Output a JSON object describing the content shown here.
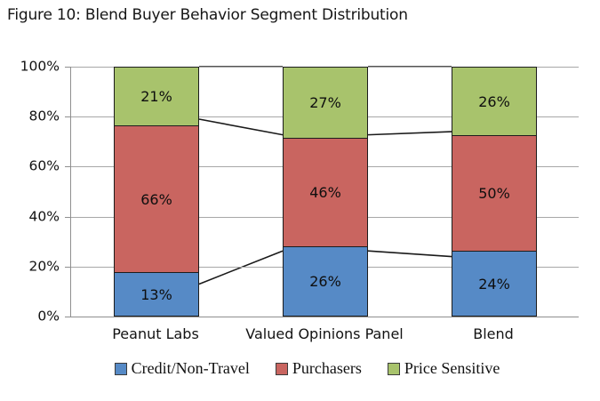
{
  "title": "Figure 10: Blend Buyer Behavior Segment Distribution",
  "chart_data": {
    "type": "bar",
    "variant": "100%-stacked-column",
    "title": "Figure 10: Blend Buyer Behavior Segment Distribution",
    "categories": [
      "Peanut Labs",
      "Valued Opinions Panel",
      "Blend"
    ],
    "series": [
      {
        "name": "Credit/Non-Travel",
        "color": "#568AC6",
        "values": [
          13,
          26,
          24
        ]
      },
      {
        "name": "Purchasers",
        "color": "#C96560",
        "values": [
          66,
          46,
          50
        ]
      },
      {
        "name": "Price Sensitive",
        "color": "#A8C36C",
        "values": [
          21,
          27,
          26
        ]
      }
    ],
    "stack_order_top_to_bottom": [
      "Price Sensitive",
      "Purchasers",
      "Credit/Non-Travel"
    ],
    "data_labels": {
      "Peanut Labs": {
        "Credit/Non-Travel": "13%",
        "Purchasers": "66%",
        "Price Sensitive": "21%"
      },
      "Valued Opinions Panel": {
        "Credit/Non-Travel": "26%",
        "Purchasers": "46%",
        "Price Sensitive": "27%"
      },
      "Blend": {
        "Credit/Non-Travel": "24%",
        "Purchasers": "50%",
        "Price Sensitive": "26%"
      }
    },
    "y_axis": {
      "min": 0,
      "max": 100,
      "tick_step": 20,
      "tick_labels": [
        "0%",
        "20%",
        "40%",
        "60%",
        "80%",
        "100%"
      ]
    },
    "grid": true,
    "series_connector_lines": true,
    "legend_position": "bottom",
    "colors": {
      "gridline": "#a8a8a8",
      "axis": "#8f8f8f",
      "bar_border": "#1c1c1c",
      "connector_line": "#1a1a1a",
      "text": "#131313"
    }
  }
}
